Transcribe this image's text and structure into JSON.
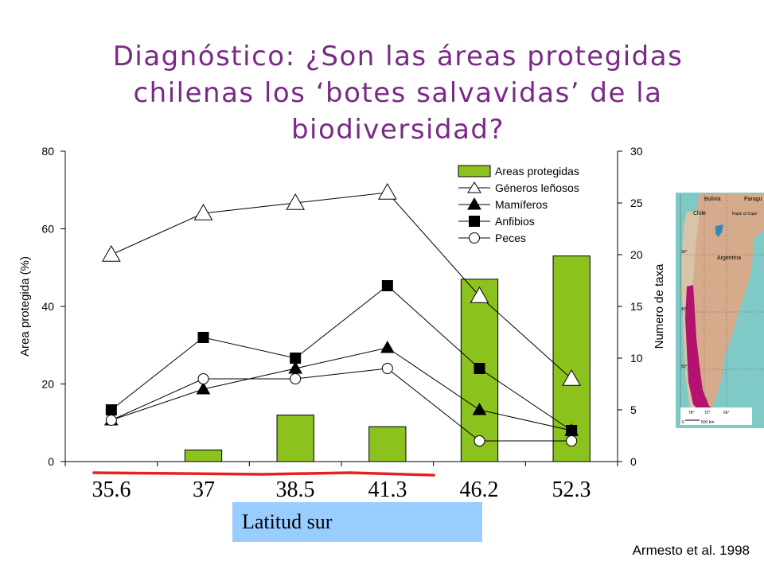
{
  "title_lines": [
    "Diagnóstico: ¿Son las áreas protegidas",
    "chilenas los ‘botes salvavidas’ de la",
    "biodiversidad?"
  ],
  "citation": "Armesto et al. 1998",
  "x_axis_title": "Latitud sur",
  "map": {
    "labels": [
      "Bolivia",
      "Paragu",
      "Chile",
      "Tropic of Capri",
      "Argentina",
      "30°",
      "40°",
      "50°",
      "78°",
      "72°",
      "66°",
      "0",
      "500 km"
    ],
    "colors": {
      "ocean": "#7fc9c7",
      "land": "#d6ab8c",
      "chile": "#d9c4a8",
      "protected": "#b3126e"
    }
  },
  "chart_data": {
    "type": "bar+line",
    "categories": [
      "35.6",
      "37",
      "38.5",
      "41.3",
      "46.2",
      "52.3"
    ],
    "y_left": {
      "label": "Area protegida (%)",
      "ylim": [
        0,
        80
      ],
      "ticks": [
        0,
        20,
        40,
        60,
        80
      ]
    },
    "y_right": {
      "label": "Numero de taxa",
      "ylim": [
        0,
        30
      ],
      "ticks": [
        0,
        5,
        10,
        15,
        20,
        25,
        30
      ]
    },
    "bars": {
      "name": "Areas protegidas",
      "axis": "left",
      "color": "#8cc21e",
      "values": [
        0,
        3,
        12,
        9,
        47,
        53
      ]
    },
    "series": [
      {
        "name": "Géneros leñosos",
        "axis": "right",
        "marker": "triangle-open",
        "values": [
          20,
          24,
          25,
          26,
          16,
          8
        ]
      },
      {
        "name": "Mamíferos",
        "axis": "right",
        "marker": "triangle-filled",
        "values": [
          4,
          7,
          9,
          11,
          5,
          3
        ]
      },
      {
        "name": "Anfibios",
        "axis": "right",
        "marker": "square-filled",
        "values": [
          5,
          12,
          10,
          17,
          9,
          3
        ]
      },
      {
        "name": "Peces",
        "axis": "right",
        "marker": "circle-open",
        "values": [
          4,
          8,
          8,
          9,
          2,
          2
        ]
      }
    ],
    "grid": false,
    "legend": "top-right"
  }
}
